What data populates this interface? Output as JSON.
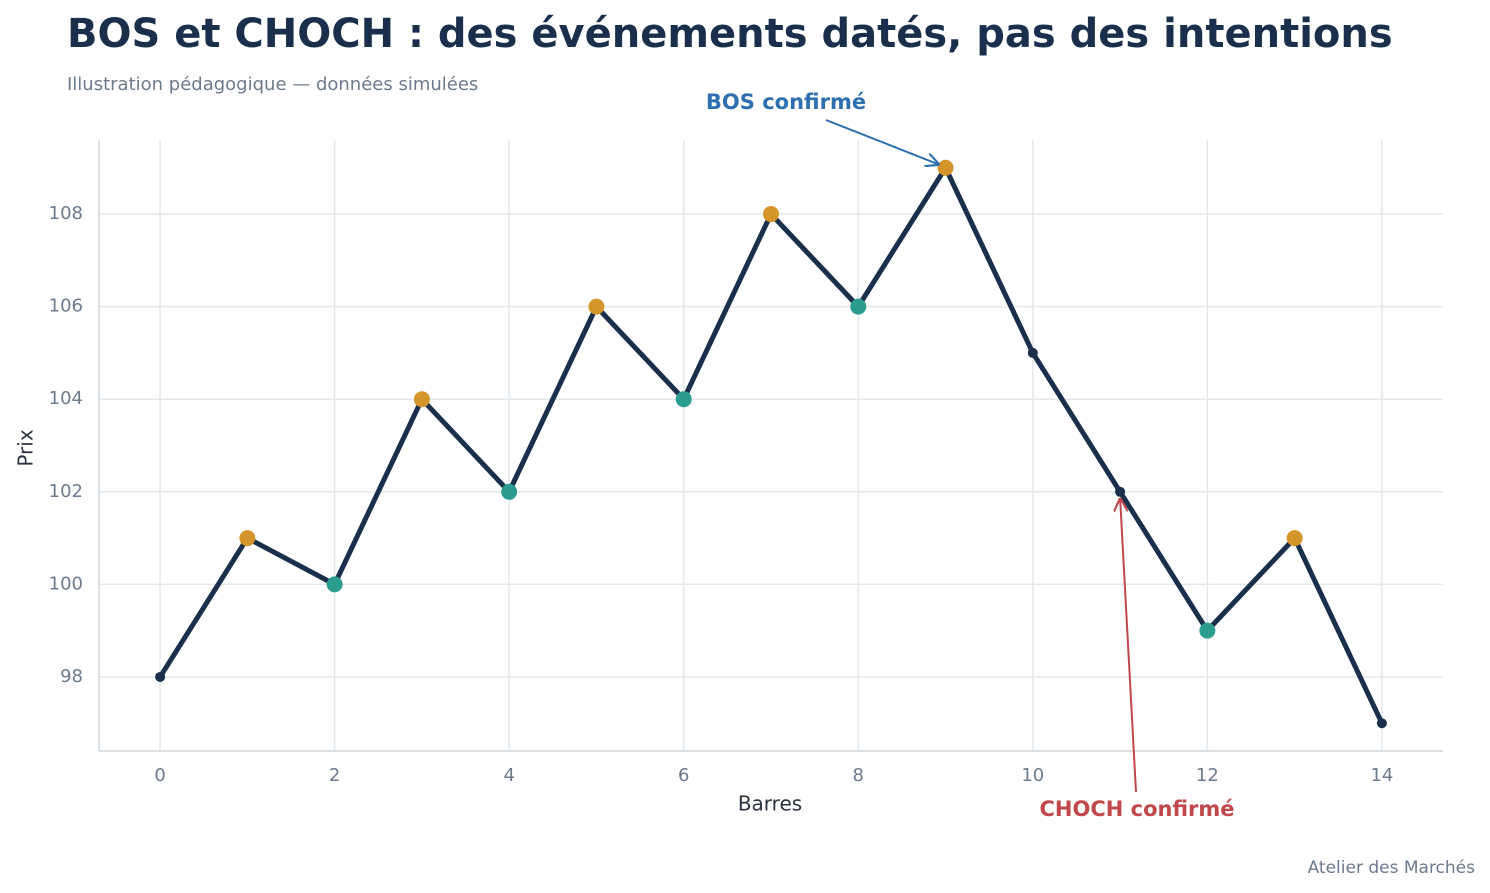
{
  "chart_data": {
    "type": "line",
    "title": "BOS et CHOCH : des événements datés, pas des intentions",
    "subtitle": "Illustration pédagogique — données simulées",
    "x_label": "Barres",
    "y_label": "Prix",
    "footer": "Atelier des Marchés",
    "x": [
      0,
      1,
      2,
      3,
      4,
      5,
      6,
      7,
      8,
      9,
      10,
      11,
      12,
      13,
      14
    ],
    "series": [
      {
        "color": "#1a2f4b",
        "values": [
          98,
          101,
          100,
          104,
          102,
          106,
          104,
          108,
          106,
          109,
          105,
          102,
          99,
          101,
          97
        ],
        "marker_colors": [
          "#1a2f4b",
          "#d4952a",
          "#2a9d8f",
          "#d4952a",
          "#2a9d8f",
          "#d4952a",
          "#2a9d8f",
          "#d4952a",
          "#2a9d8f",
          "#d4952a",
          "#1a2f4b",
          "#1a2f4b",
          "#2a9d8f",
          "#d4952a",
          "#1a2f4b"
        ]
      }
    ],
    "xlim": [
      -0.7,
      14.7
    ],
    "ylim": [
      96.4,
      109.6
    ],
    "xticks": [
      0,
      2,
      4,
      6,
      8,
      10,
      12,
      14
    ],
    "yticks": [
      98,
      100,
      102,
      104,
      106,
      108
    ],
    "grid": true,
    "annotations": [
      {
        "text": "BOS confirmé",
        "x": 9,
        "y": 109,
        "color": "#2e6fb0"
      },
      {
        "text": "CHOCH confirmé",
        "x": 11,
        "y": 102,
        "color": "#c0474a"
      }
    ]
  }
}
